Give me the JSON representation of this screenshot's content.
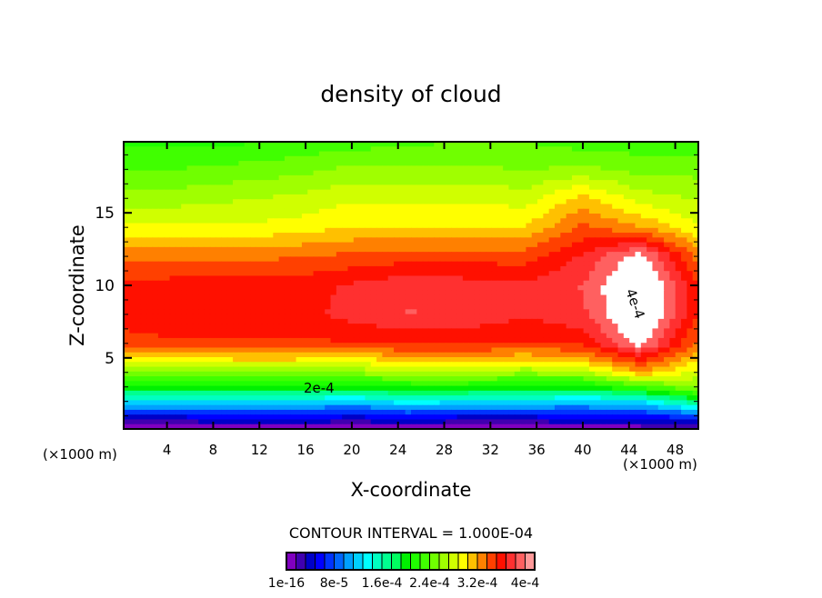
{
  "chart_data": {
    "type": "heatmap",
    "title": "density of cloud",
    "xlabel": "X-coordinate",
    "ylabel": "Z-coordinate",
    "x_unit_left": "(×1000 m)",
    "x_unit_right": "(×1000 m)",
    "xlim": [
      0.25,
      50
    ],
    "ylim": [
      0.1,
      19.9
    ],
    "xticks": [
      4,
      8,
      12,
      16,
      20,
      24,
      28,
      32,
      36,
      40,
      44,
      48
    ],
    "yticks": [
      5,
      10,
      15
    ],
    "contour_interval_text": "CONTOUR INTERVAL = 1.000E-04",
    "contour_labels": [
      "2e-4",
      "4e-4"
    ],
    "value_unit": "1e-4",
    "grid_x": [
      0,
      5,
      10,
      15,
      20,
      25,
      30,
      35,
      40,
      45,
      50
    ],
    "grid_z": [
      0,
      1,
      2,
      3,
      4,
      5,
      6,
      8,
      10,
      12,
      14,
      16,
      18,
      20
    ],
    "values": [
      [
        0,
        0,
        0,
        0,
        0,
        0,
        0,
        0,
        0,
        0,
        0
      ],
      [
        0.5,
        0.5,
        0.6,
        0.6,
        0.5,
        0.6,
        0.5,
        0.5,
        0.6,
        0.6,
        0.8
      ],
      [
        1.3,
        1.3,
        1.3,
        1.3,
        1.2,
        1.4,
        1.3,
        1.3,
        1.2,
        1.3,
        1.8
      ],
      [
        2.0,
        2.0,
        2.0,
        2.0,
        2.05,
        2.1,
        2.1,
        2.05,
        2.0,
        2.3,
        2.6
      ],
      [
        2.6,
        2.5,
        2.6,
        2.6,
        2.6,
        2.7,
        2.7,
        2.6,
        2.7,
        3.2,
        2.8
      ],
      [
        3.05,
        3.0,
        3.1,
        3.1,
        3.0,
        3.2,
        3.2,
        3.1,
        3.2,
        3.6,
        3.1
      ],
      [
        3.45,
        3.5,
        3.5,
        3.5,
        3.5,
        3.55,
        3.55,
        3.5,
        3.55,
        4.1,
        3.3
      ],
      [
        3.6,
        3.65,
        3.6,
        3.6,
        3.75,
        3.85,
        3.8,
        3.7,
        3.8,
        4.3,
        3.5
      ],
      [
        3.55,
        3.6,
        3.6,
        3.6,
        3.7,
        3.8,
        3.75,
        3.7,
        3.85,
        4.3,
        3.5
      ],
      [
        3.3,
        3.3,
        3.3,
        3.35,
        3.4,
        3.45,
        3.45,
        3.45,
        3.7,
        4.1,
        3.3
      ],
      [
        2.9,
        2.9,
        2.9,
        2.95,
        3.05,
        3.05,
        3.05,
        3.05,
        3.4,
        3.2,
        2.9
      ],
      [
        2.6,
        2.65,
        2.7,
        2.75,
        2.85,
        2.85,
        2.85,
        2.8,
        3.1,
        2.8,
        2.7
      ],
      [
        2.4,
        2.4,
        2.45,
        2.5,
        2.6,
        2.6,
        2.6,
        2.55,
        2.6,
        2.5,
        2.5
      ],
      [
        2.2,
        2.2,
        2.2,
        2.25,
        2.3,
        2.35,
        2.4,
        2.4,
        2.3,
        2.3,
        2.3
      ]
    ],
    "colorbar": {
      "step": 0.16,
      "labels": [
        "1e-16",
        "8e-5",
        "1.6e-4",
        "2.4e-4",
        "3.2e-4",
        "4e-4"
      ],
      "colors": [
        "#8000c0",
        "#4000b0",
        "#0000c8",
        "#0000ff",
        "#0033ff",
        "#0066ff",
        "#00a0ff",
        "#00d0ff",
        "#00ffff",
        "#00ffc0",
        "#00ff90",
        "#00ff60",
        "#00f000",
        "#20ff00",
        "#40ff00",
        "#70ff00",
        "#a0ff00",
        "#d0ff00",
        "#ffff00",
        "#ffc000",
        "#ff8000",
        "#ff4000",
        "#ff1000",
        "#ff3030",
        "#ff6060",
        "#ff9999"
      ]
    }
  }
}
